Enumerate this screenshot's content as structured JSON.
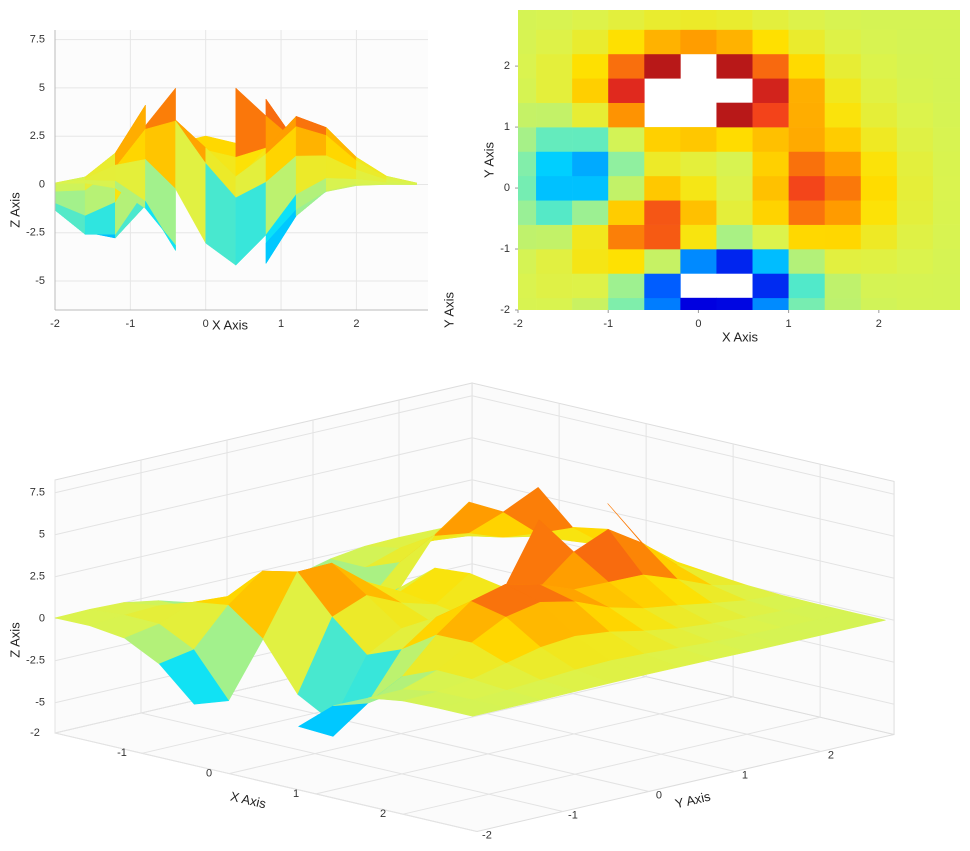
{
  "chart_data": [
    {
      "type": "surface-side",
      "xlabel": "X Axis",
      "zlabel": "Z Axis",
      "ylabel": "Y Axis",
      "xlim": [
        -2,
        2.95
      ],
      "xticks": [
        -2,
        -1,
        0,
        1,
        2
      ],
      "zlim": [
        -6.5,
        8
      ],
      "zticks": [
        -5,
        -2.5,
        0,
        2.5,
        5,
        7.5
      ],
      "grid": true
    },
    {
      "type": "heatmap",
      "xlabel": "X Axis",
      "ylabel": "Y Axis",
      "xlim": [
        -2,
        2.9
      ],
      "xticks": [
        -2,
        -1,
        0,
        1,
        2
      ],
      "ylim": [
        -2,
        2.92
      ],
      "yticks": [
        -2,
        -1,
        0,
        1,
        2
      ]
    },
    {
      "type": "surface3d",
      "xlabel": "X Axis",
      "ylabel": "Y Axis",
      "zlabel": "Z Axis",
      "xlim": [
        -2,
        2.85
      ],
      "xticks": [
        -2,
        -1,
        0,
        1,
        2
      ],
      "ylim": [
        -2,
        2.85
      ],
      "yticks": [
        -2,
        -1,
        0,
        1,
        2
      ],
      "zlim": [
        -6.8,
        8.26
      ],
      "zticks": [
        -5,
        -2.5,
        0,
        2.5,
        5,
        7.5
      ],
      "grid": true,
      "colormap": [
        "#0000e0",
        "#0050ff",
        "#00e0ff",
        "#90f0a0",
        "#dcf34c",
        "#ffe000",
        "#ff9a00",
        "#f03020",
        "#b81818"
      ],
      "x": [
        -2,
        -1.6,
        -1.2,
        -0.8,
        -0.4,
        0,
        0.4,
        0.8,
        1.2,
        1.6,
        2,
        2.4,
        2.8
      ],
      "y": [
        -2,
        -1.6,
        -1.2,
        -0.8,
        -0.4,
        0,
        0.4,
        0.8,
        1.2,
        1.6,
        2,
        2.4,
        2.8
      ],
      "z": [
        [
          0.05,
          0.07,
          -0.19,
          -1.24,
          -3.15,
          -4.75,
          -4.66,
          -3.03,
          -1.31,
          -0.37,
          -0.06,
          0,
          0
        ],
        [
          0.08,
          0.22,
          0.18,
          -0.87,
          -3.42,
          null,
          null,
          -4.09,
          -1.63,
          -0.34,
          0,
          0.02,
          0.01
        ],
        [
          0.01,
          0.3,
          1,
          1.3,
          -0.23,
          -3.04,
          -4.18,
          -2.61,
          -0.53,
          0.32,
          0.27,
          0.1,
          0.02
        ],
        [
          -0.35,
          -0.29,
          0.87,
          2.86,
          3.29,
          1.09,
          -0.69,
          0.12,
          1.47,
          1.49,
          0.75,
          0.23,
          0.05
        ],
        [
          -0.95,
          -1.6,
          -0.9,
          1.68,
          3.34,
          1.9,
          0.41,
          1.57,
          3,
          2.54,
          1.22,
          0.37,
          0.07
        ],
        [
          -1.33,
          -2.58,
          -2.58,
          -0.29,
          1.75,
          0.98,
          0.16,
          1.87,
          3.53,
          2.95,
          1.41,
          0.43,
          0.08
        ],
        [
          -1.22,
          -2.46,
          -2.77,
          -1.09,
          0.7,
          0.4,
          0.05,
          1.62,
          3.03,
          2.51,
          1.19,
          0.36,
          0.07
        ],
        [
          -0.75,
          -1.47,
          -1.48,
          -0.03,
          1.62,
          1.78,
          1.41,
          1.89,
          2.27,
          1.68,
          0.77,
          0.23,
          0.05
        ],
        [
          -0.25,
          -0.28,
          0.51,
          2.63,
          null,
          null,
          4.99,
          3.55,
          2.23,
          1.15,
          0.44,
          0.12,
          0.02
        ],
        [
          0.03,
          0.39,
          1.63,
          4.11,
          null,
          null,
          null,
          4.42,
          2.19,
          0.85,
          0.26,
          0.06,
          0.01
        ],
        [
          0.08,
          0.39,
          1.32,
          3.05,
          4.99,
          null,
          4.99,
          3.12,
          1.45,
          0.51,
          0.13,
          0.03,
          0
        ],
        [
          0.04,
          0.18,
          0.58,
          1.32,
          2.14,
          2.51,
          2.14,
          1.33,
          0.61,
          0.2,
          0.05,
          0.01,
          0
        ],
        [
          0.01,
          0.05,
          0.16,
          0.36,
          0.58,
          0.68,
          0.58,
          0.36,
          0.16,
          0.05,
          0.01,
          0,
          0
        ]
      ]
    }
  ]
}
